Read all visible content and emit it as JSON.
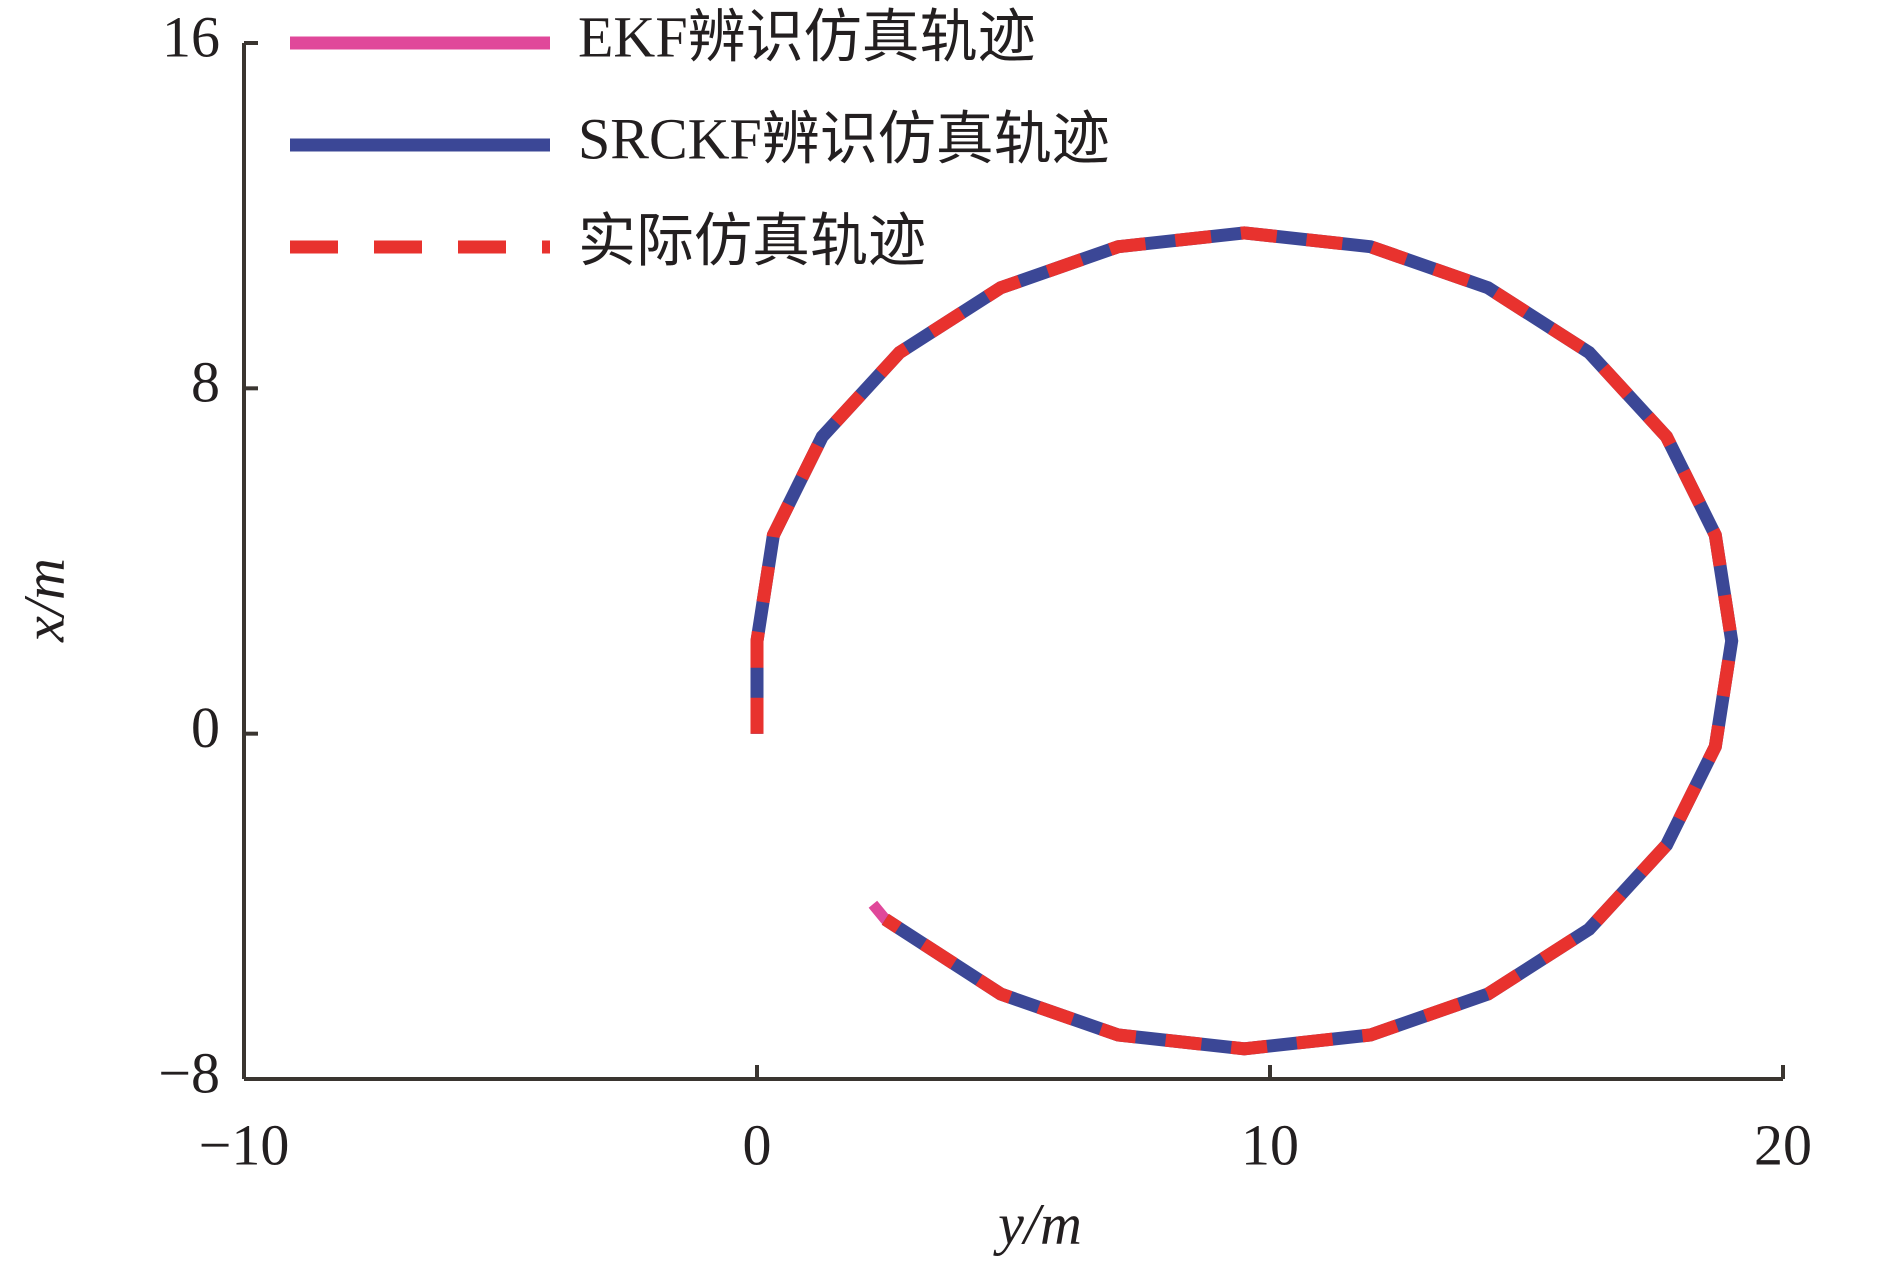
{
  "chart_data": {
    "type": "line",
    "x_label": "y/m",
    "y_label": "x/m",
    "x": [
      0,
      0,
      0,
      0.32,
      1.27,
      2.78,
      4.75,
      7.04,
      9.5,
      11.96,
      14.25,
      16.22,
      17.73,
      18.68,
      19.0,
      18.68,
      17.73,
      16.22,
      14.25,
      11.96,
      9.5,
      7.04,
      4.75,
      2.5,
      2.26
    ],
    "series": [
      {
        "name": "EKF辨识仿真轨迹",
        "color": "#e0489a",
        "style": "solid",
        "values": [
          0,
          1,
          2.15,
          4.6,
          6.88,
          8.83,
          10.33,
          11.28,
          11.6,
          11.28,
          10.33,
          8.83,
          6.88,
          4.6,
          2.15,
          -0.3,
          -2.58,
          -4.53,
          -6.03,
          -6.98,
          -7.3,
          -6.98,
          -6.03,
          -4.3,
          -3.95
        ]
      },
      {
        "name": "SRCKF辨识仿真轨迹",
        "color": "#3b4796",
        "style": "solid",
        "values": [
          0,
          1,
          2.15,
          4.6,
          6.88,
          8.83,
          10.33,
          11.28,
          11.6,
          11.28,
          10.33,
          8.83,
          6.88,
          4.6,
          2.15,
          -0.3,
          -2.58,
          -4.53,
          -6.03,
          -6.98,
          -7.3,
          -6.98,
          -6.03,
          -4.3,
          null
        ]
      },
      {
        "name": "实际仿真轨迹",
        "color": "#e8322e",
        "style": "dashed",
        "values": [
          0,
          1,
          2.15,
          4.6,
          6.88,
          8.83,
          10.33,
          11.28,
          11.6,
          11.28,
          10.33,
          8.83,
          6.88,
          4.6,
          2.15,
          -0.3,
          -2.58,
          -4.53,
          -6.03,
          -6.98,
          -7.3,
          -6.98,
          -6.03,
          -4.3,
          null
        ]
      }
    ],
    "xlim": [
      -10,
      20
    ],
    "xticks": [
      {
        "value": -10,
        "label": "−10"
      },
      0,
      10,
      20
    ],
    "ylim": [
      -8,
      16
    ],
    "yticks": [
      {
        "value": -8,
        "label": "−8"
      },
      0,
      8,
      16
    ],
    "grid": false,
    "legend": "upper left"
  }
}
